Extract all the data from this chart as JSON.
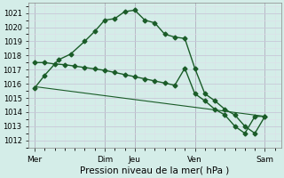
{
  "background_color": "#d4ede8",
  "grid_color_major": "#c8c8d8",
  "grid_color_minor": "#dddde8",
  "line_color": "#1a5c28",
  "marker": "D",
  "marker_size": 2.5,
  "line_width": 1.0,
  "title": "Pression niveau de la mer( hPa )",
  "ylim": [
    1011.5,
    1021.7
  ],
  "yticks": [
    1012,
    1013,
    1014,
    1015,
    1016,
    1017,
    1018,
    1019,
    1020,
    1021
  ],
  "xlim": [
    -0.3,
    12.3
  ],
  "line1_x": [
    0.0,
    0.5,
    1.2,
    1.8,
    2.5,
    3.0,
    3.5,
    4.0,
    4.5,
    5.0,
    5.5,
    6.0,
    6.5,
    7.0,
    7.5,
    8.0,
    8.5,
    9.0,
    9.5,
    10.0,
    10.5,
    11.0,
    11.5
  ],
  "line1_y": [
    1015.7,
    1016.6,
    1017.7,
    1018.1,
    1019.0,
    1019.7,
    1020.5,
    1020.6,
    1021.1,
    1021.2,
    1020.5,
    1020.3,
    1019.5,
    1019.3,
    1019.2,
    1017.1,
    1015.3,
    1014.8,
    1014.2,
    1013.8,
    1013.0,
    1012.5,
    1013.7
  ],
  "line2_x": [
    0.0,
    0.5,
    1.0,
    1.5,
    2.0,
    2.5,
    3.0,
    3.5,
    4.0,
    4.5,
    5.0,
    5.5,
    6.0,
    6.5,
    7.0,
    7.5,
    8.0,
    8.5,
    9.0,
    9.5,
    10.0,
    10.5,
    11.0,
    11.5
  ],
  "line2_y": [
    1017.5,
    1017.5,
    1017.4,
    1017.35,
    1017.25,
    1017.15,
    1017.05,
    1016.95,
    1016.8,
    1016.65,
    1016.5,
    1016.35,
    1016.2,
    1016.05,
    1015.9,
    1017.1,
    1015.3,
    1014.8,
    1014.2,
    1013.8,
    1013.0,
    1012.5,
    1013.7,
    1013.7
  ],
  "line3_x": [
    0.0,
    11.5
  ],
  "line3_y": [
    1015.8,
    1013.7
  ],
  "vlines_x": [
    0.0,
    3.5,
    5.0,
    8.0,
    11.5
  ],
  "vlines_color": "#666666",
  "xtick_positions": [
    0.0,
    3.5,
    5.0,
    8.0,
    11.5
  ],
  "xtick_labels": [
    "Mer",
    "Dim",
    "Jeu",
    "Ven",
    "Sam"
  ]
}
